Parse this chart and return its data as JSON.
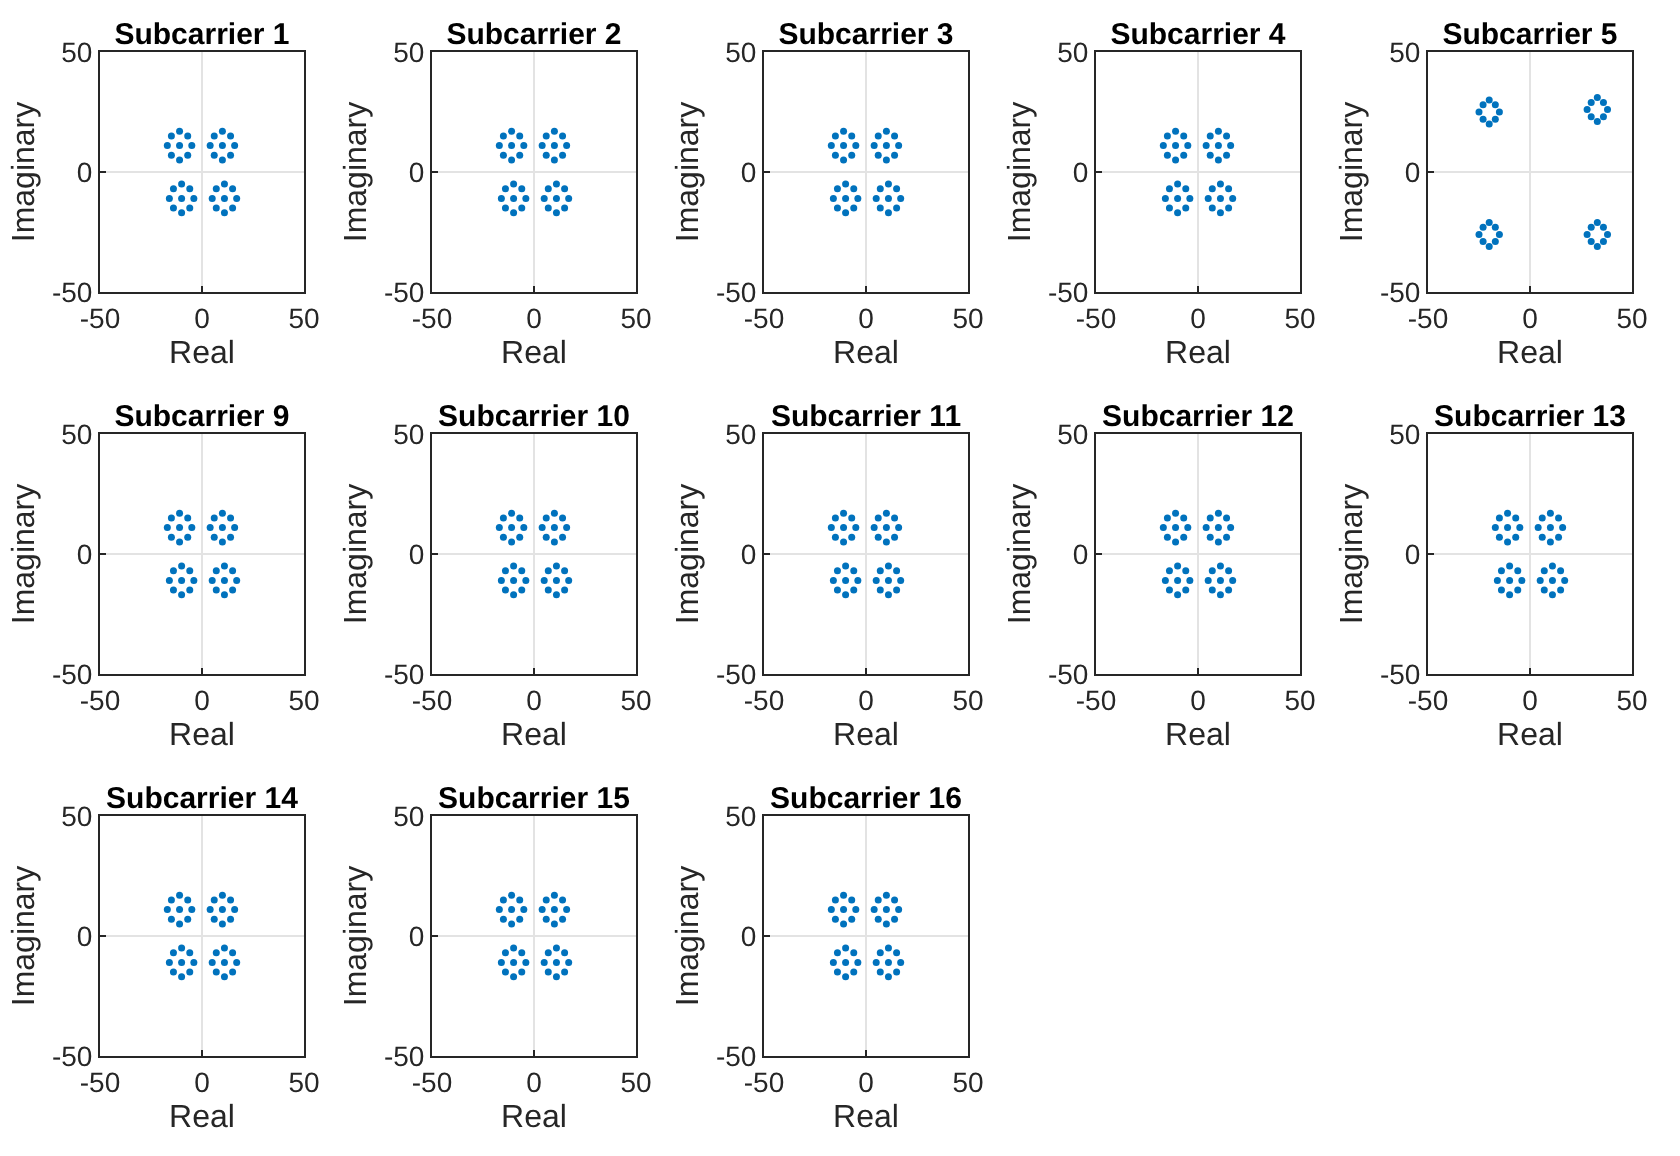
{
  "chart_data": [
    {
      "type": "scatter",
      "title": "Subcarrier 1",
      "xlabel": "Real",
      "ylabel": "Imaginary",
      "color": "#0072bd",
      "marker": "circle",
      "grid": true,
      "xlim": [
        -50,
        50
      ],
      "ylim": [
        -50,
        50
      ],
      "xticks": [
        -50,
        0,
        50
      ],
      "yticks": [
        -50,
        0,
        50
      ],
      "x": [
        -11,
        -5,
        -17,
        -11,
        -11,
        -7,
        -7,
        -15,
        -15,
        10,
        16,
        4,
        10,
        10,
        14,
        14,
        6,
        6,
        -10,
        -4,
        -16,
        -10,
        -10,
        -6,
        -6,
        -14,
        -14,
        11,
        17,
        5,
        11,
        11,
        15,
        15,
        7,
        7
      ],
      "values": [
        11,
        11,
        11,
        17,
        5,
        15,
        7,
        15,
        7,
        11,
        11,
        11,
        17,
        5,
        15,
        7,
        15,
        7,
        -11,
        -11,
        -11,
        -5,
        -17,
        -7,
        -15,
        -7,
        -15,
        -11,
        -11,
        -11,
        -5,
        -17,
        -7,
        -15,
        -7,
        -15
      ]
    },
    {
      "type": "scatter",
      "title": "Subcarrier 2",
      "xlabel": "Real",
      "ylabel": "Imaginary",
      "color": "#0072bd",
      "marker": "circle",
      "grid": true,
      "xlim": [
        -50,
        50
      ],
      "ylim": [
        -50,
        50
      ],
      "xticks": [
        -50,
        0,
        50
      ],
      "yticks": [
        -50,
        0,
        50
      ],
      "x": [
        -11,
        -5,
        -17,
        -11,
        -11,
        -7,
        -7,
        -15,
        -15,
        10,
        16,
        4,
        10,
        10,
        14,
        14,
        6,
        6,
        -10,
        -4,
        -16,
        -10,
        -10,
        -6,
        -6,
        -14,
        -14,
        11,
        17,
        5,
        11,
        11,
        15,
        15,
        7,
        7
      ],
      "values": [
        11,
        11,
        11,
        17,
        5,
        15,
        7,
        15,
        7,
        11,
        11,
        11,
        17,
        5,
        15,
        7,
        15,
        7,
        -11,
        -11,
        -11,
        -5,
        -17,
        -7,
        -15,
        -7,
        -15,
        -11,
        -11,
        -11,
        -5,
        -17,
        -7,
        -15,
        -7,
        -15
      ]
    },
    {
      "type": "scatter",
      "title": "Subcarrier 3",
      "xlabel": "Real",
      "ylabel": "Imaginary",
      "color": "#0072bd",
      "marker": "circle",
      "grid": true,
      "xlim": [
        -50,
        50
      ],
      "ylim": [
        -50,
        50
      ],
      "xticks": [
        -50,
        0,
        50
      ],
      "yticks": [
        -50,
        0,
        50
      ],
      "x": [
        -11,
        -5,
        -17,
        -11,
        -11,
        -7,
        -7,
        -15,
        -15,
        10,
        16,
        4,
        10,
        10,
        14,
        14,
        6,
        6,
        -10,
        -4,
        -16,
        -10,
        -10,
        -6,
        -6,
        -14,
        -14,
        11,
        17,
        5,
        11,
        11,
        15,
        15,
        7,
        7
      ],
      "values": [
        11,
        11,
        11,
        17,
        5,
        15,
        7,
        15,
        7,
        11,
        11,
        11,
        17,
        5,
        15,
        7,
        15,
        7,
        -11,
        -11,
        -11,
        -5,
        -17,
        -7,
        -15,
        -7,
        -15,
        -11,
        -11,
        -11,
        -5,
        -17,
        -7,
        -15,
        -7,
        -15
      ]
    },
    {
      "type": "scatter",
      "title": "Subcarrier 4",
      "xlabel": "Real",
      "ylabel": "Imaginary",
      "color": "#0072bd",
      "marker": "circle",
      "grid": true,
      "xlim": [
        -50,
        50
      ],
      "ylim": [
        -50,
        50
      ],
      "xticks": [
        -50,
        0,
        50
      ],
      "yticks": [
        -50,
        0,
        50
      ],
      "x": [
        -11,
        -5,
        -17,
        -11,
        -11,
        -7,
        -7,
        -15,
        -15,
        10,
        16,
        4,
        10,
        10,
        14,
        14,
        6,
        6,
        -10,
        -4,
        -16,
        -10,
        -10,
        -6,
        -6,
        -14,
        -14,
        11,
        17,
        5,
        11,
        11,
        15,
        15,
        7,
        7
      ],
      "values": [
        11,
        11,
        11,
        17,
        5,
        15,
        7,
        15,
        7,
        11,
        11,
        11,
        17,
        5,
        15,
        7,
        15,
        7,
        -11,
        -11,
        -11,
        -5,
        -17,
        -7,
        -15,
        -7,
        -15,
        -11,
        -11,
        -11,
        -5,
        -17,
        -7,
        -15,
        -7,
        -15
      ]
    },
    {
      "type": "scatter",
      "title": "Subcarrier 5",
      "xlabel": "Real",
      "ylabel": "Imaginary",
      "color": "#0072bd",
      "marker": "circle",
      "grid": true,
      "xlim": [
        -50,
        50
      ],
      "ylim": [
        -50,
        50
      ],
      "xticks": [
        -50,
        0,
        50
      ],
      "yticks": [
        -50,
        0,
        50
      ],
      "x": [
        -15,
        -25,
        -20,
        -20,
        -17,
        -17,
        -23,
        -23,
        38,
        28,
        33,
        33,
        36,
        36,
        30,
        30,
        -15,
        -25,
        -20,
        -20,
        -17,
        -17,
        -23,
        -23,
        38,
        28,
        33,
        33,
        36,
        36,
        30,
        30
      ],
      "values": [
        25,
        25,
        30,
        20,
        28,
        22,
        28,
        22,
        26,
        26,
        31,
        21,
        29,
        23,
        29,
        23,
        -26,
        -26,
        -21,
        -31,
        -23,
        -29,
        -23,
        -29,
        -26,
        -26,
        -21,
        -31,
        -23,
        -29,
        -23,
        -29
      ]
    },
    {
      "type": "scatter",
      "title": "Subcarrier 9",
      "xlabel": "Real",
      "ylabel": "Imaginary",
      "color": "#0072bd",
      "marker": "circle",
      "grid": true,
      "xlim": [
        -50,
        50
      ],
      "ylim": [
        -50,
        50
      ],
      "xticks": [
        -50,
        0,
        50
      ],
      "yticks": [
        -50,
        0,
        50
      ],
      "x": [
        -11,
        -5,
        -17,
        -11,
        -11,
        -7,
        -7,
        -15,
        -15,
        10,
        16,
        4,
        10,
        10,
        14,
        14,
        6,
        6,
        -10,
        -4,
        -16,
        -10,
        -10,
        -6,
        -6,
        -14,
        -14,
        11,
        17,
        5,
        11,
        11,
        15,
        15,
        7,
        7
      ],
      "values": [
        11,
        11,
        11,
        17,
        5,
        15,
        7,
        15,
        7,
        11,
        11,
        11,
        17,
        5,
        15,
        7,
        15,
        7,
        -11,
        -11,
        -11,
        -5,
        -17,
        -7,
        -15,
        -7,
        -15,
        -11,
        -11,
        -11,
        -5,
        -17,
        -7,
        -15,
        -7,
        -15
      ]
    },
    {
      "type": "scatter",
      "title": "Subcarrier 10",
      "xlabel": "Real",
      "ylabel": "Imaginary",
      "color": "#0072bd",
      "marker": "circle",
      "grid": true,
      "xlim": [
        -50,
        50
      ],
      "ylim": [
        -50,
        50
      ],
      "xticks": [
        -50,
        0,
        50
      ],
      "yticks": [
        -50,
        0,
        50
      ],
      "x": [
        -11,
        -5,
        -17,
        -11,
        -11,
        -7,
        -7,
        -15,
        -15,
        10,
        16,
        4,
        10,
        10,
        14,
        14,
        6,
        6,
        -10,
        -4,
        -16,
        -10,
        -10,
        -6,
        -6,
        -14,
        -14,
        11,
        17,
        5,
        11,
        11,
        15,
        15,
        7,
        7
      ],
      "values": [
        11,
        11,
        11,
        17,
        5,
        15,
        7,
        15,
        7,
        11,
        11,
        11,
        17,
        5,
        15,
        7,
        15,
        7,
        -11,
        -11,
        -11,
        -5,
        -17,
        -7,
        -15,
        -7,
        -15,
        -11,
        -11,
        -11,
        -5,
        -17,
        -7,
        -15,
        -7,
        -15
      ]
    },
    {
      "type": "scatter",
      "title": "Subcarrier 11",
      "xlabel": "Real",
      "ylabel": "Imaginary",
      "color": "#0072bd",
      "marker": "circle",
      "grid": true,
      "xlim": [
        -50,
        50
      ],
      "ylim": [
        -50,
        50
      ],
      "xticks": [
        -50,
        0,
        50
      ],
      "yticks": [
        -50,
        0,
        50
      ],
      "x": [
        -11,
        -5,
        -17,
        -11,
        -11,
        -7,
        -7,
        -15,
        -15,
        10,
        16,
        4,
        10,
        10,
        14,
        14,
        6,
        6,
        -10,
        -4,
        -16,
        -10,
        -10,
        -6,
        -6,
        -14,
        -14,
        11,
        17,
        5,
        11,
        11,
        15,
        15,
        7,
        7
      ],
      "values": [
        11,
        11,
        11,
        17,
        5,
        15,
        7,
        15,
        7,
        11,
        11,
        11,
        17,
        5,
        15,
        7,
        15,
        7,
        -11,
        -11,
        -11,
        -5,
        -17,
        -7,
        -15,
        -7,
        -15,
        -11,
        -11,
        -11,
        -5,
        -17,
        -7,
        -15,
        -7,
        -15
      ]
    },
    {
      "type": "scatter",
      "title": "Subcarrier 12",
      "xlabel": "Real",
      "ylabel": "Imaginary",
      "color": "#0072bd",
      "marker": "circle",
      "grid": true,
      "xlim": [
        -50,
        50
      ],
      "ylim": [
        -50,
        50
      ],
      "xticks": [
        -50,
        0,
        50
      ],
      "yticks": [
        -50,
        0,
        50
      ],
      "x": [
        -11,
        -5,
        -17,
        -11,
        -11,
        -7,
        -7,
        -15,
        -15,
        10,
        16,
        4,
        10,
        10,
        14,
        14,
        6,
        6,
        -10,
        -4,
        -16,
        -10,
        -10,
        -6,
        -6,
        -14,
        -14,
        11,
        17,
        5,
        11,
        11,
        15,
        15,
        7,
        7
      ],
      "values": [
        11,
        11,
        11,
        17,
        5,
        15,
        7,
        15,
        7,
        11,
        11,
        11,
        17,
        5,
        15,
        7,
        15,
        7,
        -11,
        -11,
        -11,
        -5,
        -17,
        -7,
        -15,
        -7,
        -15,
        -11,
        -11,
        -11,
        -5,
        -17,
        -7,
        -15,
        -7,
        -15
      ]
    },
    {
      "type": "scatter",
      "title": "Subcarrier 13",
      "xlabel": "Real",
      "ylabel": "Imaginary",
      "color": "#0072bd",
      "marker": "circle",
      "grid": true,
      "xlim": [
        -50,
        50
      ],
      "ylim": [
        -50,
        50
      ],
      "xticks": [
        -50,
        0,
        50
      ],
      "yticks": [
        -50,
        0,
        50
      ],
      "x": [
        -11,
        -5,
        -17,
        -11,
        -11,
        -7,
        -7,
        -15,
        -15,
        10,
        16,
        4,
        10,
        10,
        14,
        14,
        6,
        6,
        -10,
        -4,
        -16,
        -10,
        -10,
        -6,
        -6,
        -14,
        -14,
        11,
        17,
        5,
        11,
        11,
        15,
        15,
        7,
        7
      ],
      "values": [
        11,
        11,
        11,
        17,
        5,
        15,
        7,
        15,
        7,
        11,
        11,
        11,
        17,
        5,
        15,
        7,
        15,
        7,
        -11,
        -11,
        -11,
        -5,
        -17,
        -7,
        -15,
        -7,
        -15,
        -11,
        -11,
        -11,
        -5,
        -17,
        -7,
        -15,
        -7,
        -15
      ]
    },
    {
      "type": "scatter",
      "title": "Subcarrier 14",
      "xlabel": "Real",
      "ylabel": "Imaginary",
      "color": "#0072bd",
      "marker": "circle",
      "grid": true,
      "xlim": [
        -50,
        50
      ],
      "ylim": [
        -50,
        50
      ],
      "xticks": [
        -50,
        0,
        50
      ],
      "yticks": [
        -50,
        0,
        50
      ],
      "x": [
        -11,
        -5,
        -17,
        -11,
        -11,
        -7,
        -7,
        -15,
        -15,
        10,
        16,
        4,
        10,
        10,
        14,
        14,
        6,
        6,
        -10,
        -4,
        -16,
        -10,
        -10,
        -6,
        -6,
        -14,
        -14,
        11,
        17,
        5,
        11,
        11,
        15,
        15,
        7,
        7
      ],
      "values": [
        11,
        11,
        11,
        17,
        5,
        15,
        7,
        15,
        7,
        11,
        11,
        11,
        17,
        5,
        15,
        7,
        15,
        7,
        -11,
        -11,
        -11,
        -5,
        -17,
        -7,
        -15,
        -7,
        -15,
        -11,
        -11,
        -11,
        -5,
        -17,
        -7,
        -15,
        -7,
        -15
      ]
    },
    {
      "type": "scatter",
      "title": "Subcarrier 15",
      "xlabel": "Real",
      "ylabel": "Imaginary",
      "color": "#0072bd",
      "marker": "circle",
      "grid": true,
      "xlim": [
        -50,
        50
      ],
      "ylim": [
        -50,
        50
      ],
      "xticks": [
        -50,
        0,
        50
      ],
      "yticks": [
        -50,
        0,
        50
      ],
      "x": [
        -11,
        -5,
        -17,
        -11,
        -11,
        -7,
        -7,
        -15,
        -15,
        10,
        16,
        4,
        10,
        10,
        14,
        14,
        6,
        6,
        -10,
        -4,
        -16,
        -10,
        -10,
        -6,
        -6,
        -14,
        -14,
        11,
        17,
        5,
        11,
        11,
        15,
        15,
        7,
        7
      ],
      "values": [
        11,
        11,
        11,
        17,
        5,
        15,
        7,
        15,
        7,
        11,
        11,
        11,
        17,
        5,
        15,
        7,
        15,
        7,
        -11,
        -11,
        -11,
        -5,
        -17,
        -7,
        -15,
        -7,
        -15,
        -11,
        -11,
        -11,
        -5,
        -17,
        -7,
        -15,
        -7,
        -15
      ]
    },
    {
      "type": "scatter",
      "title": "Subcarrier 16",
      "xlabel": "Real",
      "ylabel": "Imaginary",
      "color": "#0072bd",
      "marker": "circle",
      "grid": true,
      "xlim": [
        -50,
        50
      ],
      "ylim": [
        -50,
        50
      ],
      "xticks": [
        -50,
        0,
        50
      ],
      "yticks": [
        -50,
        0,
        50
      ],
      "x": [
        -11,
        -5,
        -17,
        -11,
        -11,
        -7,
        -7,
        -15,
        -15,
        10,
        16,
        4,
        10,
        10,
        14,
        14,
        6,
        6,
        -10,
        -4,
        -16,
        -10,
        -10,
        -6,
        -6,
        -14,
        -14,
        11,
        17,
        5,
        11,
        11,
        15,
        15,
        7,
        7
      ],
      "values": [
        11,
        11,
        11,
        17,
        5,
        15,
        7,
        15,
        7,
        11,
        11,
        11,
        17,
        5,
        15,
        7,
        15,
        7,
        -11,
        -11,
        -11,
        -5,
        -17,
        -7,
        -15,
        -7,
        -15,
        -11,
        -11,
        -11,
        -5,
        -17,
        -7,
        -15,
        -7,
        -15
      ]
    }
  ]
}
